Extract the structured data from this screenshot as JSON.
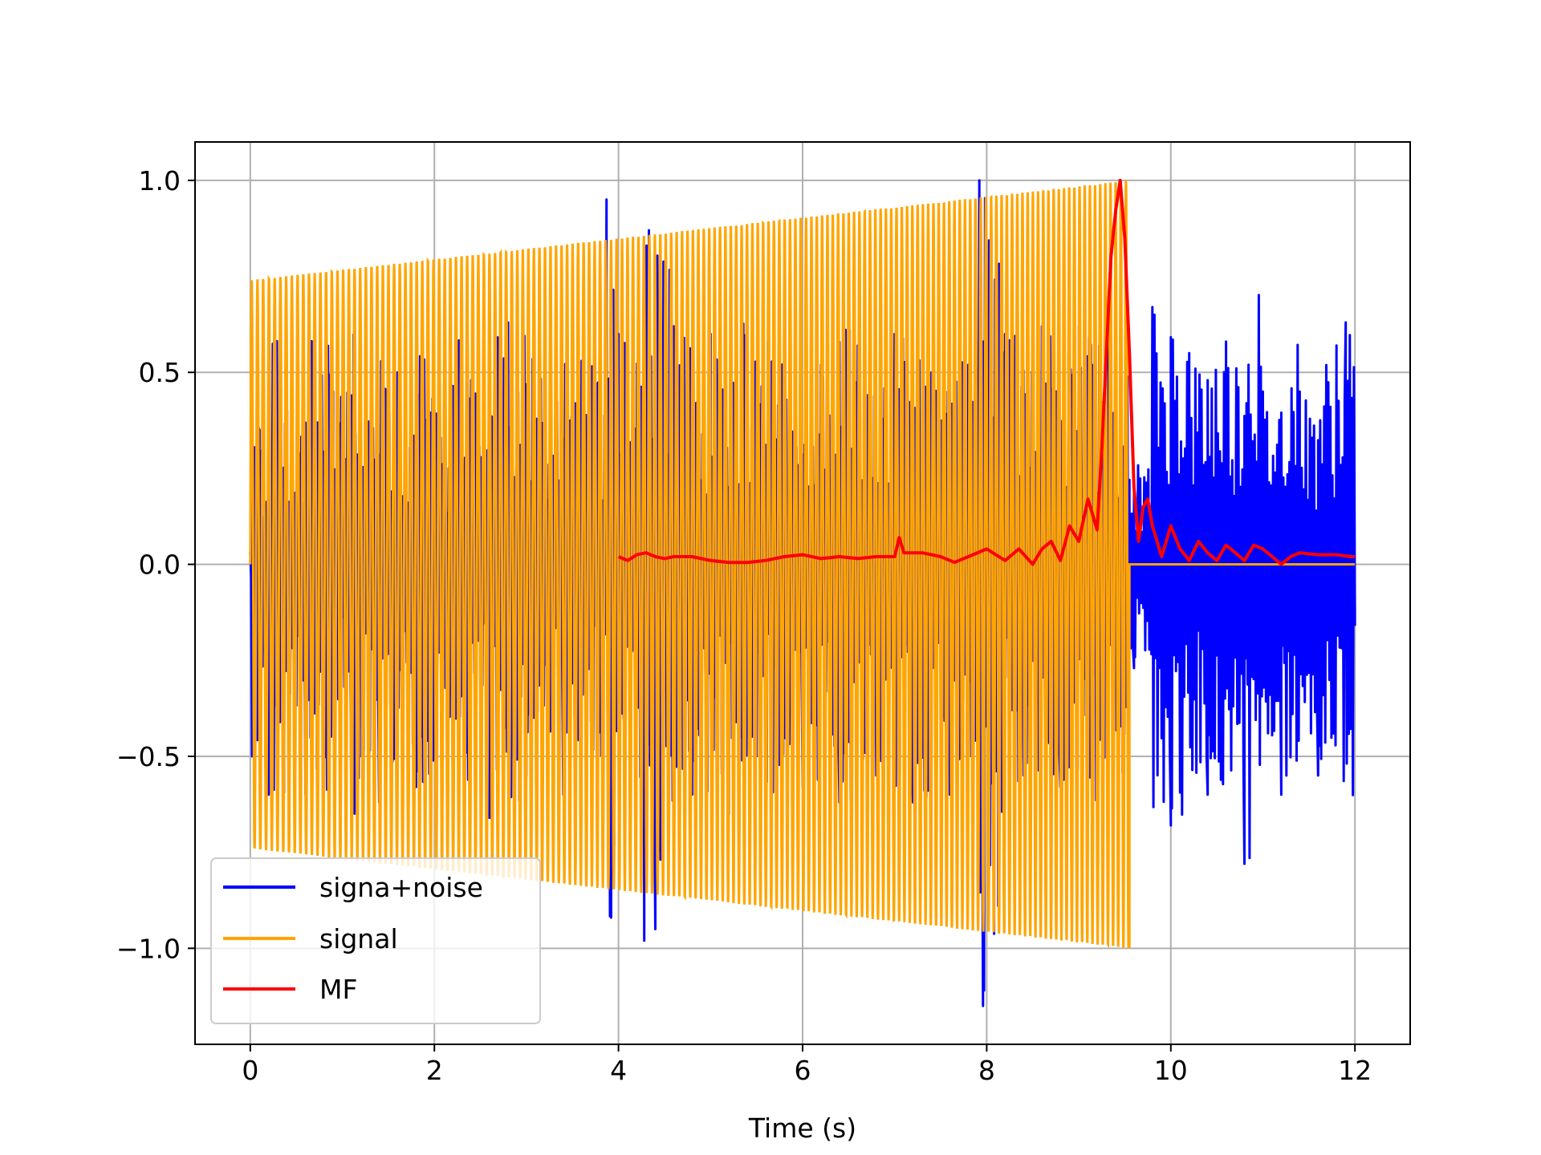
{
  "chart_data": {
    "type": "line",
    "title": "",
    "xlabel": "Time (s)",
    "ylabel": "",
    "xlim": [
      -0.6,
      12.6
    ],
    "ylim": [
      -1.25,
      1.1
    ],
    "xticks": [
      0,
      2,
      4,
      6,
      8,
      10,
      12
    ],
    "yticks": [
      -1.0,
      -0.5,
      0.0,
      0.5,
      1.0
    ],
    "xtick_labels": [
      "0",
      "2",
      "4",
      "6",
      "8",
      "10",
      "12"
    ],
    "ytick_labels": [
      "−1.0",
      "−0.5",
      "0.0",
      "0.5",
      "1.0"
    ],
    "grid": true,
    "legend_placement": "lower-left",
    "series": [
      {
        "name": "signa+noise",
        "color": "#0000ff",
        "note_style": "dense noisy oscillation, spikes",
        "x": [
          0,
          0.02,
          0.1,
          0.2,
          0.4,
          0.6,
          0.9,
          1.1,
          1.2,
          1.4,
          1.6,
          1.8,
          2.0,
          2.2,
          2.4,
          2.6,
          2.8,
          3.0,
          3.2,
          3.4,
          3.6,
          3.87,
          3.92,
          4.0,
          4.28,
          4.33,
          4.4,
          4.6,
          4.8,
          5.0,
          5.2,
          5.4,
          5.6,
          5.8,
          6.0,
          6.2,
          6.4,
          6.6,
          6.8,
          7.0,
          7.2,
          7.4,
          7.6,
          7.8,
          7.92,
          7.96,
          8.2,
          8.4,
          8.6,
          8.8,
          9.0,
          9.2,
          9.4,
          9.55,
          9.6,
          9.8,
          10.0,
          10.2,
          10.4,
          10.6,
          10.8,
          11.0,
          11.2,
          11.4,
          11.6,
          11.8,
          11.9,
          12.0
        ],
        "y": [
          0.05,
          -0.5,
          0.35,
          -0.6,
          0.4,
          -0.6,
          0.45,
          -0.7,
          0.55,
          -0.62,
          0.5,
          -0.58,
          0.4,
          -0.6,
          0.48,
          -0.66,
          0.63,
          -0.55,
          0.46,
          -0.6,
          0.53,
          0.95,
          -0.92,
          0.6,
          -0.98,
          0.87,
          -0.95,
          0.62,
          -0.6,
          0.6,
          -0.65,
          0.54,
          -0.6,
          0.55,
          -0.58,
          0.52,
          -0.62,
          0.57,
          -0.55,
          0.6,
          -0.62,
          0.5,
          -0.6,
          0.52,
          1.0,
          -1.15,
          0.6,
          -0.55,
          0.62,
          -0.58,
          0.62,
          -0.6,
          0.55,
          0.22,
          -0.27,
          0.67,
          -0.68,
          0.55,
          -0.6,
          0.58,
          -0.78,
          0.45,
          -0.6,
          0.45,
          -0.55,
          0.57,
          0.63,
          -0.16
        ]
      },
      {
        "name": "signal",
        "color": "#ffa500",
        "note_style": "chirp envelope from 0.74 at t=0 to 1.0 at t≈9.55, then 0",
        "envelope_start": 0.74,
        "envelope_end": 1.0,
        "t_start": 0.0,
        "t_end": 9.55,
        "after_end_value": 0.0,
        "x_after": [
          9.55,
          12.0
        ],
        "y_after": [
          0.0,
          0.0
        ]
      },
      {
        "name": "MF",
        "color": "#ff0000",
        "x": [
          4.0,
          4.1,
          4.2,
          4.3,
          4.4,
          4.5,
          4.6,
          4.8,
          5.0,
          5.2,
          5.4,
          5.6,
          5.8,
          6.0,
          6.2,
          6.4,
          6.6,
          6.8,
          7.0,
          7.05,
          7.1,
          7.3,
          7.5,
          7.65,
          7.8,
          8.0,
          8.2,
          8.35,
          8.5,
          8.6,
          8.7,
          8.8,
          8.9,
          9.0,
          9.1,
          9.2,
          9.25,
          9.3,
          9.35,
          9.4,
          9.45,
          9.5,
          9.55,
          9.6,
          9.65,
          9.7,
          9.75,
          9.8,
          9.9,
          10.0,
          10.05,
          10.1,
          10.2,
          10.3,
          10.4,
          10.5,
          10.6,
          10.7,
          10.8,
          10.9,
          11.0,
          11.1,
          11.2,
          11.3,
          11.4,
          11.6,
          11.8,
          11.95,
          12.0
        ],
        "y": [
          0.02,
          0.01,
          0.025,
          0.03,
          0.02,
          0.015,
          0.02,
          0.02,
          0.01,
          0.005,
          0.005,
          0.01,
          0.02,
          0.025,
          0.015,
          0.02,
          0.015,
          0.02,
          0.02,
          0.07,
          0.03,
          0.03,
          0.02,
          0.005,
          0.02,
          0.04,
          0.01,
          0.04,
          0.0,
          0.04,
          0.06,
          0.01,
          0.1,
          0.06,
          0.17,
          0.09,
          0.3,
          0.55,
          0.8,
          0.92,
          1.0,
          0.85,
          0.55,
          0.2,
          0.06,
          0.15,
          0.17,
          0.1,
          0.02,
          0.1,
          0.07,
          0.04,
          0.01,
          0.06,
          0.03,
          0.01,
          0.05,
          0.03,
          0.01,
          0.05,
          0.04,
          0.02,
          0.0,
          0.02,
          0.03,
          0.025,
          0.025,
          0.02,
          0.02
        ]
      }
    ]
  }
}
